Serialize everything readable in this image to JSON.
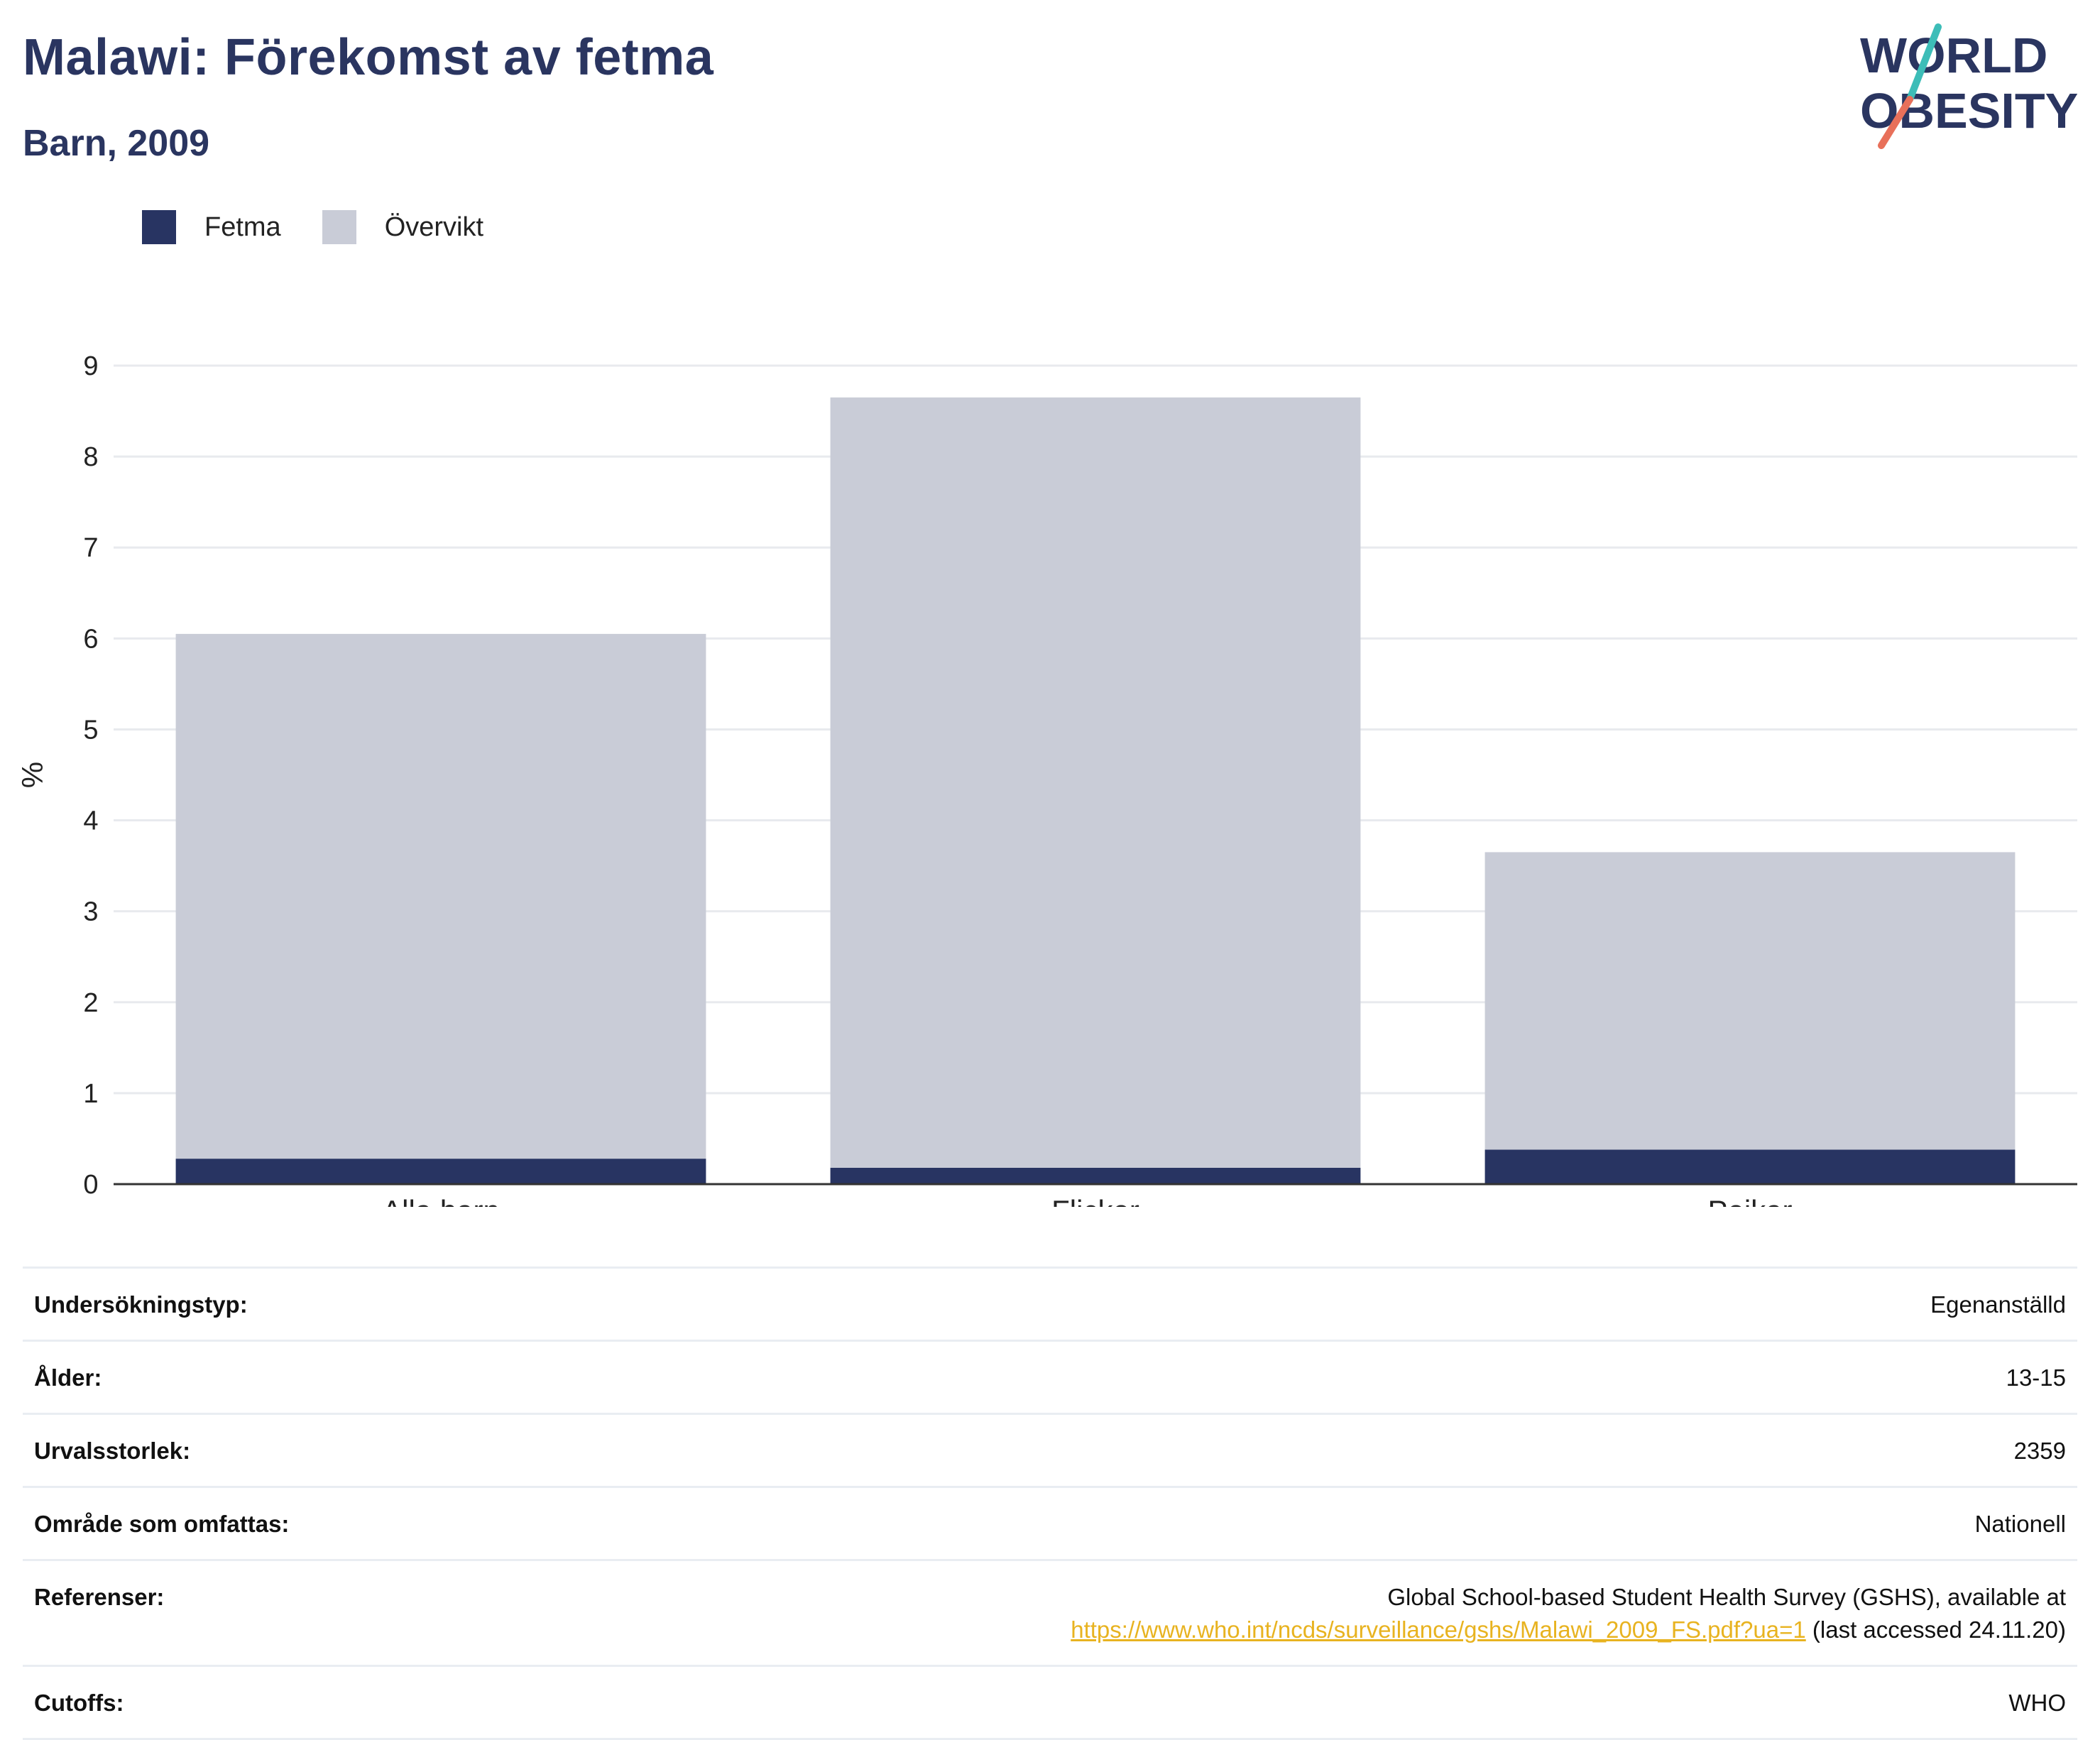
{
  "header": {
    "title": "Malawi: Förekomst av fetma",
    "subtitle": "Barn, 2009"
  },
  "logo": {
    "line1": "WORLD",
    "line2": "OBESITY",
    "colors": {
      "text": "#2a3560",
      "slash_top": "#3dbdb8",
      "slash_bottom": "#e8705a"
    }
  },
  "colors": {
    "fetma": "#283462",
    "overvikt": "#c9ccd7",
    "grid": "#e8eaee",
    "axis": "#333333",
    "link": "#e8b320"
  },
  "chart_data": {
    "type": "bar",
    "stacked": true,
    "categories": [
      "Alla barn",
      "Flickor",
      "Pojkar"
    ],
    "series": [
      {
        "name": "Fetma",
        "values": [
          0.28,
          0.18,
          0.38
        ]
      },
      {
        "name": "Övervikt",
        "values": [
          5.77,
          8.47,
          3.27
        ]
      }
    ],
    "ylabel": "%",
    "ylim": [
      0,
      9
    ],
    "yticks": [
      "0",
      "1",
      "2",
      "3",
      "4",
      "5",
      "6",
      "7",
      "8",
      "9"
    ],
    "grid": true,
    "legend": "top-left"
  },
  "info": {
    "survey_type": {
      "label": "Undersökningstyp:",
      "value": "Egenanställd"
    },
    "age": {
      "label": "Ålder:",
      "value": "13-15"
    },
    "sample_size": {
      "label": "Urvalsstorlek:",
      "value": "2359"
    },
    "area": {
      "label": "Område som omfattas:",
      "value": "Nationell"
    },
    "references": {
      "label": "Referenser:",
      "text_before": "Global School-based Student Health Survey (GSHS), available at",
      "link": "https://www.who.int/ncds/surveillance/gshs/Malawi_2009_FS.pdf?ua=1",
      "text_after": " (last accessed 24.11.20)"
    },
    "cutoffs": {
      "label": "Cutoffs:",
      "value": "WHO"
    }
  }
}
